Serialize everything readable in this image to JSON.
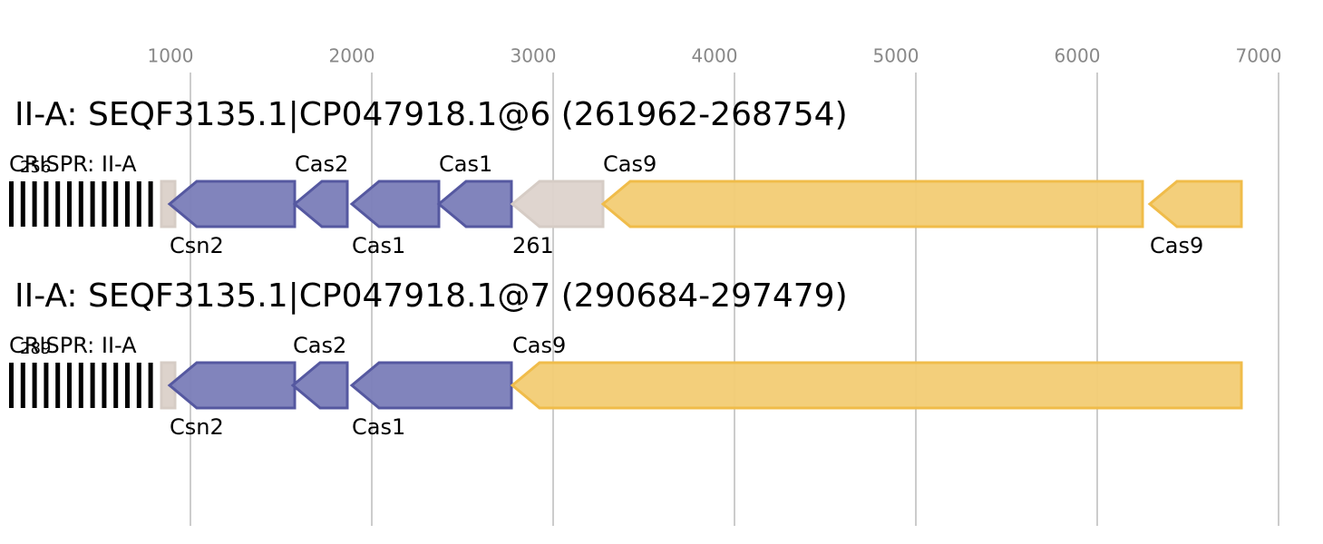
{
  "axis": {
    "xlim": [
      0,
      7245
    ],
    "ticks": [
      1000,
      2000,
      3000,
      4000,
      5000,
      6000,
      7000
    ]
  },
  "tracks": [
    {
      "title": "II-A: SEQF3135.1|CP047918.1@6 (261962-268754)",
      "genes": [
        {
          "label": "CRISPR: II-A",
          "count": 256,
          "start": 0,
          "end": 825,
          "color": "#000000"
        },
        {
          "start": 840,
          "end": 915,
          "color": "#ddd3cc"
        },
        {
          "label": "Csn2",
          "start": 885,
          "end": 1575,
          "color": "#7a7db8"
        },
        {
          "label": "Cas2",
          "start": 1575,
          "end": 1865,
          "color": "#7a7db8"
        },
        {
          "label": "Cas1",
          "start": 1890,
          "end": 2370,
          "color": "#7a7db8"
        },
        {
          "label": "Cas1",
          "start": 2370,
          "end": 2770,
          "color": "#7a7db8"
        },
        {
          "label": "261",
          "start": 2775,
          "end": 3275,
          "color": "#ddd3cc"
        },
        {
          "label": "Cas9",
          "start": 3275,
          "end": 6250,
          "color": "#f2cc74"
        },
        {
          "label": "Cas9",
          "start": 6290,
          "end": 6795,
          "color": "#f2cc74"
        }
      ]
    },
    {
      "title": "II-A: SEQF3135.1|CP047918.1@7 (290684-297479)",
      "genes": [
        {
          "label": "CRISPR: II-A",
          "count": 289,
          "start": 0,
          "end": 825,
          "color": "#000000"
        },
        {
          "start": 840,
          "end": 915,
          "color": "#ddd3cc"
        },
        {
          "label": "Csn2",
          "start": 885,
          "end": 1575,
          "color": "#7a7db8"
        },
        {
          "label": "Cas2",
          "start": 1565,
          "end": 1865,
          "color": "#7a7db8"
        },
        {
          "label": "Cas1",
          "start": 1890,
          "end": 2770,
          "color": "#7a7db8"
        },
        {
          "label": "Cas9",
          "start": 2775,
          "end": 6795,
          "color": "#f2cc74"
        }
      ]
    }
  ]
}
